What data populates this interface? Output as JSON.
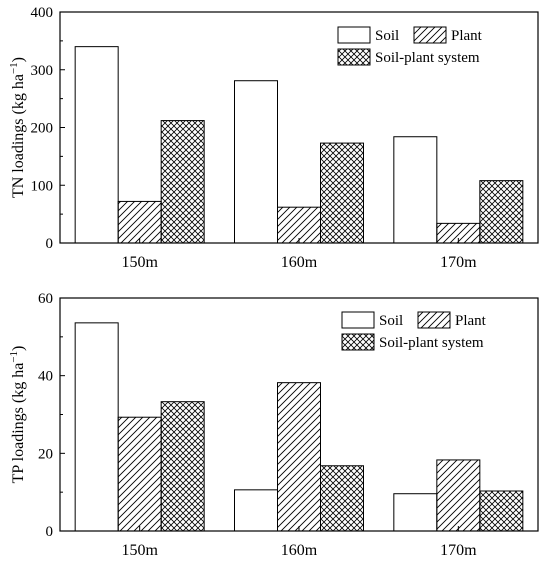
{
  "chart_data": [
    {
      "type": "bar",
      "categories": [
        "150m",
        "160m",
        "170m"
      ],
      "series": [
        {
          "name": "Soil",
          "values": [
            340,
            281,
            184
          ]
        },
        {
          "name": "Plant",
          "values": [
            72,
            62,
            34
          ]
        },
        {
          "name": "Soil-plant system",
          "values": [
            212,
            173,
            108
          ]
        }
      ],
      "ylabel": "TN loadings (kg ha",
      "ylabel_sup": "−1",
      "ylabel_close": ")",
      "yticks": [
        0,
        100,
        200,
        300,
        400
      ],
      "ylim": [
        0,
        400
      ],
      "grid": false,
      "legend_position": "top-right"
    },
    {
      "type": "bar",
      "categories": [
        "150m",
        "160m",
        "170m"
      ],
      "series": [
        {
          "name": "Soil",
          "values": [
            53.6,
            10.6,
            9.6
          ]
        },
        {
          "name": "Plant",
          "values": [
            29.3,
            38.2,
            18.3
          ]
        },
        {
          "name": "Soil-plant system",
          "values": [
            33.3,
            16.8,
            10.3
          ]
        }
      ],
      "ylabel": "TP loadings (kg ha",
      "ylabel_sup": "−1",
      "ylabel_close": ")",
      "yticks": [
        0,
        20,
        40,
        60
      ],
      "ylim": [
        0,
        60
      ],
      "grid": false,
      "legend_position": "top-right"
    }
  ]
}
